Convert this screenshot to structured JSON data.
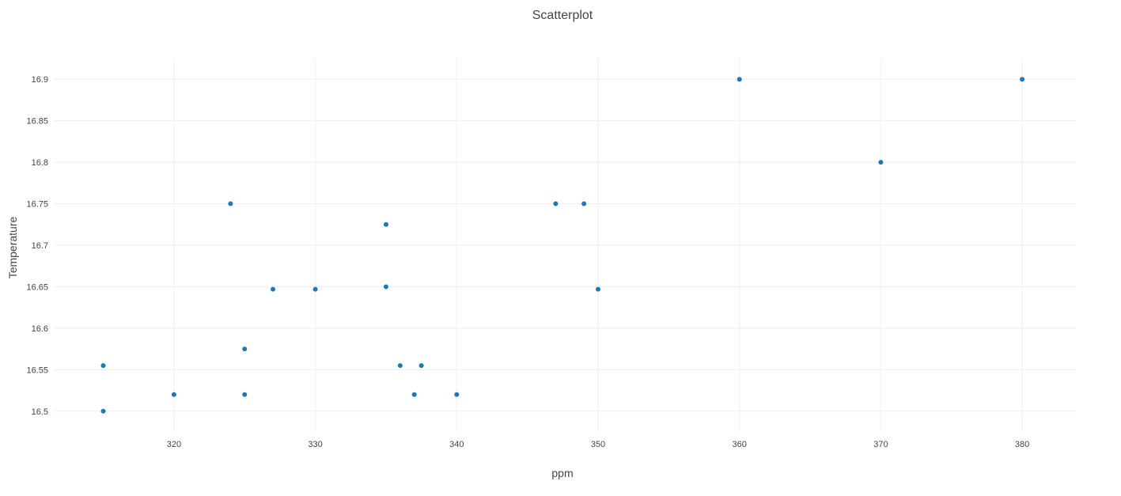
{
  "chart_data": {
    "type": "scatter",
    "title": "Scatterplot",
    "xlabel": "ppm",
    "ylabel": "Temperature",
    "xlim": [
      311.5,
      383.8
    ],
    "ylim": [
      16.475,
      16.925
    ],
    "x_ticks": [
      320,
      330,
      340,
      350,
      360,
      370,
      380
    ],
    "x_tick_labels": [
      "320",
      "330",
      "340",
      "350",
      "360",
      "370",
      "380"
    ],
    "y_ticks": [
      16.5,
      16.55,
      16.6,
      16.65,
      16.7,
      16.75,
      16.8,
      16.85,
      16.9
    ],
    "y_tick_labels": [
      "16.5",
      "16.55",
      "16.6",
      "16.65",
      "16.7",
      "16.75",
      "16.8",
      "16.85",
      "16.9"
    ],
    "grid": true,
    "marker_color": "#1f77b4",
    "grid_color": "#eeeeee",
    "text_color": "#444444",
    "series": [
      {
        "points": [
          {
            "x": 315,
            "y": 16.555
          },
          {
            "x": 315,
            "y": 16.5
          },
          {
            "x": 320,
            "y": 16.52
          },
          {
            "x": 324,
            "y": 16.75
          },
          {
            "x": 325,
            "y": 16.575
          },
          {
            "x": 325,
            "y": 16.52
          },
          {
            "x": 327,
            "y": 16.647
          },
          {
            "x": 330,
            "y": 16.647
          },
          {
            "x": 335,
            "y": 16.725
          },
          {
            "x": 335,
            "y": 16.65
          },
          {
            "x": 336,
            "y": 16.555
          },
          {
            "x": 337,
            "y": 16.52
          },
          {
            "x": 337.5,
            "y": 16.555
          },
          {
            "x": 340,
            "y": 16.52
          },
          {
            "x": 347,
            "y": 16.75
          },
          {
            "x": 349,
            "y": 16.75
          },
          {
            "x": 350,
            "y": 16.647
          },
          {
            "x": 360,
            "y": 16.9
          },
          {
            "x": 370,
            "y": 16.8
          },
          {
            "x": 380,
            "y": 16.9
          }
        ]
      }
    ]
  }
}
